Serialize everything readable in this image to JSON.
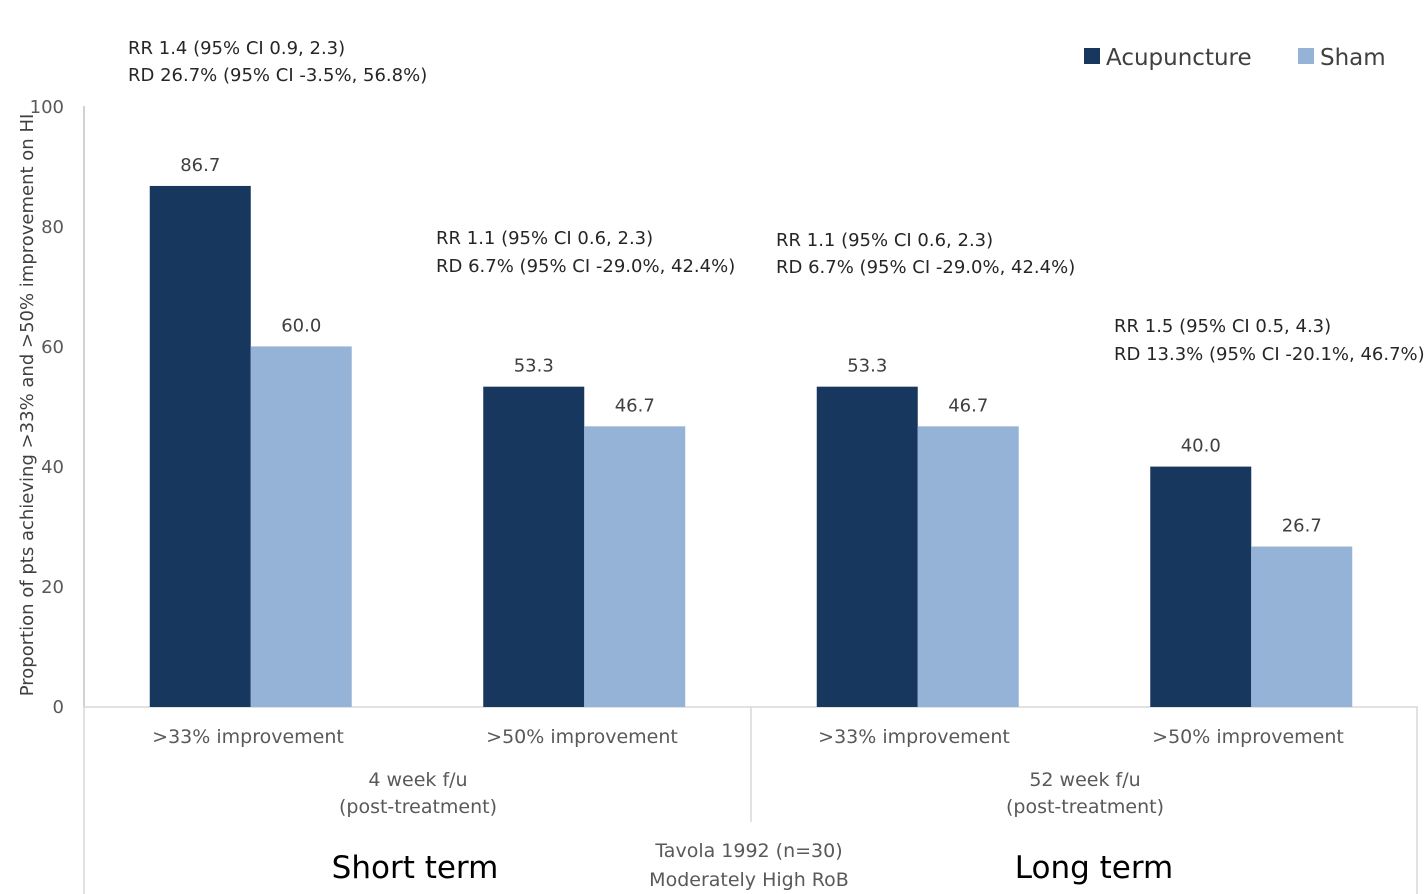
{
  "chart_data": {
    "type": "bar",
    "ylabel": "Proportion of pts achieving >33% and >50%  improvement on HI",
    "ylim": [
      0,
      100
    ],
    "yticks": [
      "0",
      "20",
      "40",
      "60",
      "80",
      "100"
    ],
    "grid": false,
    "legend_position": "top-right",
    "categories": [
      ">33% improvement",
      ">50% improvement",
      ">33% improvement",
      ">50% improvement"
    ],
    "groups": [
      {
        "label_line1": "4 week f/u",
        "label_line2": "(post-treatment)",
        "term": "Short term"
      },
      {
        "label_line1": "52 week f/u",
        "label_line2": "(post-treatment)",
        "term": "Long term"
      }
    ],
    "series": [
      {
        "name": "Acupuncture",
        "color": "#17375e",
        "values": [
          86.7,
          53.3,
          53.3,
          40.0
        ],
        "labels": [
          "86.7",
          "53.3",
          "53.3",
          "40.0"
        ]
      },
      {
        "name": "Sham",
        "color": "#95b3d7",
        "values": [
          60.0,
          46.7,
          46.7,
          26.7
        ],
        "labels": [
          "60.0",
          "46.7",
          "46.7",
          "26.7"
        ]
      }
    ],
    "annotations": [
      {
        "line1": "RR 1.4 (95% CI 0.9, 2.3)",
        "line2": "RD 26.7% (95% CI -3.5%, 56.8%)"
      },
      {
        "line1": "RR 1.1 (95% CI 0.6, 2.3)",
        "line2": "RD 6.7% (95% CI -29.0%, 42.4%)"
      },
      {
        "line1": "RR 1.1 (95% CI 0.6, 2.3)",
        "line2": "RD 6.7% (95% CI -29.0%, 42.4%)"
      },
      {
        "line1": "RR 1.5 (95% CI 0.5, 4.3)",
        "line2": "RD 13.3% (95% CI -20.1%, 46.7%)"
      }
    ],
    "footer": {
      "line1": "Tavola 1992 (n=30)",
      "line2": "Moderately High RoB"
    }
  }
}
